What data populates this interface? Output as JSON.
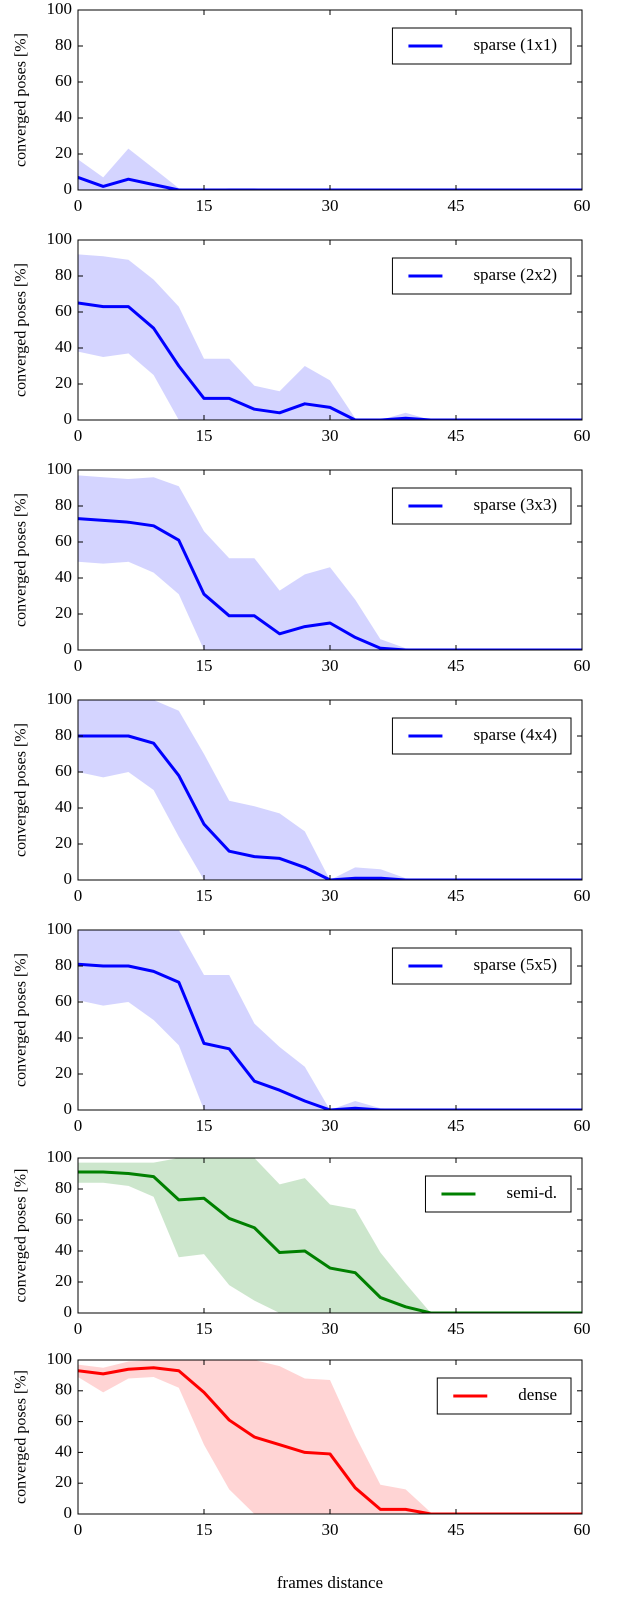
{
  "chart_data": [
    {
      "type": "line",
      "ylabel": "converged poses [%]",
      "legend": "upper right",
      "x": [
        0,
        3,
        6,
        9,
        12,
        15,
        18,
        21,
        24,
        27,
        30,
        33,
        36,
        39,
        42,
        45,
        48,
        51,
        54,
        57,
        60
      ],
      "xlim": [
        0,
        60
      ],
      "ylim": [
        0,
        100
      ],
      "xticks": [
        0,
        15,
        30,
        45,
        60
      ],
      "yticks": [
        0,
        20,
        40,
        60,
        80,
        100
      ],
      "series": [
        {
          "name": "sparse (1x1)",
          "color": "#0000ff",
          "band_color": "#d4d4ff",
          "values": [
            7,
            2,
            6,
            3,
            0,
            0,
            0,
            0,
            0,
            0,
            0,
            0,
            0,
            0,
            0,
            0,
            0,
            0,
            0,
            0,
            0
          ],
          "upper": [
            17,
            7,
            23,
            12,
            1,
            0,
            1,
            1,
            0,
            0,
            0,
            0,
            0,
            0,
            0,
            0,
            0,
            0,
            0,
            0,
            0
          ],
          "lower": [
            0,
            0,
            0,
            0,
            0,
            0,
            0,
            0,
            0,
            0,
            0,
            0,
            0,
            0,
            0,
            0,
            0,
            0,
            0,
            0,
            0
          ]
        }
      ]
    },
    {
      "type": "line",
      "ylabel": "converged poses [%]",
      "legend": "upper right",
      "x": [
        0,
        3,
        6,
        9,
        12,
        15,
        18,
        21,
        24,
        27,
        30,
        33,
        36,
        39,
        42,
        45,
        48,
        51,
        54,
        57,
        60
      ],
      "xlim": [
        0,
        60
      ],
      "ylim": [
        0,
        100
      ],
      "xticks": [
        0,
        15,
        30,
        45,
        60
      ],
      "yticks": [
        0,
        20,
        40,
        60,
        80,
        100
      ],
      "series": [
        {
          "name": "sparse (2x2)",
          "color": "#0000ff",
          "band_color": "#d4d4ff",
          "values": [
            65,
            63,
            63,
            51,
            30,
            12,
            12,
            6,
            4,
            9,
            7,
            0,
            0,
            1,
            0,
            0,
            0,
            0,
            0,
            0,
            0
          ],
          "upper": [
            92,
            91,
            89,
            78,
            63,
            34,
            34,
            19,
            16,
            30,
            22,
            1,
            0,
            4,
            0,
            0,
            0,
            0,
            0,
            0,
            0
          ],
          "lower": [
            38,
            35,
            37,
            25,
            0,
            0,
            0,
            0,
            0,
            0,
            0,
            0,
            0,
            0,
            0,
            0,
            0,
            0,
            0,
            0,
            0
          ]
        }
      ]
    },
    {
      "type": "line",
      "ylabel": "converged poses [%]",
      "legend": "upper right",
      "x": [
        0,
        3,
        6,
        9,
        12,
        15,
        18,
        21,
        24,
        27,
        30,
        33,
        36,
        39,
        42,
        45,
        48,
        51,
        54,
        57,
        60
      ],
      "xlim": [
        0,
        60
      ],
      "ylim": [
        0,
        100
      ],
      "xticks": [
        0,
        15,
        30,
        45,
        60
      ],
      "yticks": [
        0,
        20,
        40,
        60,
        80,
        100
      ],
      "series": [
        {
          "name": "sparse (3x3)",
          "color": "#0000ff",
          "band_color": "#d4d4ff",
          "values": [
            73,
            72,
            71,
            69,
            61,
            31,
            19,
            19,
            9,
            13,
            15,
            7,
            1,
            0,
            0,
            0,
            0,
            0,
            0,
            0,
            0
          ],
          "upper": [
            97,
            96,
            95,
            96,
            91,
            66,
            51,
            51,
            33,
            42,
            46,
            28,
            6,
            1,
            0,
            0,
            0,
            0,
            0,
            0,
            0
          ],
          "lower": [
            49,
            48,
            49,
            43,
            31,
            0,
            0,
            0,
            0,
            0,
            0,
            0,
            0,
            0,
            0,
            0,
            0,
            0,
            0,
            0,
            0
          ]
        }
      ]
    },
    {
      "type": "line",
      "ylabel": "converged poses [%]",
      "legend": "upper right",
      "x": [
        0,
        3,
        6,
        9,
        12,
        15,
        18,
        21,
        24,
        27,
        30,
        33,
        36,
        39,
        42,
        45,
        48,
        51,
        54,
        57,
        60
      ],
      "xlim": [
        0,
        60
      ],
      "ylim": [
        0,
        100
      ],
      "xticks": [
        0,
        15,
        30,
        45,
        60
      ],
      "yticks": [
        0,
        20,
        40,
        60,
        80,
        100
      ],
      "series": [
        {
          "name": "sparse (4x4)",
          "color": "#0000ff",
          "band_color": "#d4d4ff",
          "values": [
            80,
            80,
            80,
            76,
            58,
            31,
            16,
            13,
            12,
            7,
            0,
            1,
            1,
            0,
            0,
            0,
            0,
            0,
            0,
            0,
            0
          ],
          "upper": [
            100,
            100,
            100,
            100,
            94,
            70,
            44,
            41,
            37,
            27,
            0,
            7,
            6,
            1,
            0,
            0,
            0,
            0,
            0,
            0,
            0
          ],
          "lower": [
            60,
            57,
            60,
            50,
            24,
            0,
            0,
            0,
            0,
            0,
            0,
            0,
            0,
            0,
            0,
            0,
            0,
            0,
            0,
            0,
            0
          ]
        }
      ]
    },
    {
      "type": "line",
      "ylabel": "converged poses [%]",
      "legend": "upper right",
      "x": [
        0,
        3,
        6,
        9,
        12,
        15,
        18,
        21,
        24,
        27,
        30,
        33,
        36,
        39,
        42,
        45,
        48,
        51,
        54,
        57,
        60
      ],
      "xlim": [
        0,
        60
      ],
      "ylim": [
        0,
        100
      ],
      "xticks": [
        0,
        15,
        30,
        45,
        60
      ],
      "yticks": [
        0,
        20,
        40,
        60,
        80,
        100
      ],
      "series": [
        {
          "name": "sparse (5x5)",
          "color": "#0000ff",
          "band_color": "#d4d4ff",
          "values": [
            81,
            80,
            80,
            77,
            71,
            37,
            34,
            16,
            11,
            5,
            0,
            1,
            0,
            0,
            0,
            0,
            0,
            0,
            0,
            0,
            0
          ],
          "upper": [
            100,
            100,
            100,
            100,
            100,
            75,
            75,
            48,
            35,
            24,
            0,
            5,
            1,
            0,
            0,
            0,
            0,
            0,
            0,
            0,
            0
          ],
          "lower": [
            61,
            58,
            60,
            50,
            36,
            0,
            0,
            0,
            0,
            0,
            0,
            0,
            0,
            0,
            0,
            0,
            0,
            0,
            0,
            0,
            0
          ]
        }
      ]
    },
    {
      "type": "line",
      "ylabel": "converged poses [%]",
      "legend": "upper right",
      "x": [
        0,
        3,
        6,
        9,
        12,
        15,
        18,
        21,
        24,
        27,
        30,
        33,
        36,
        39,
        42,
        45,
        48,
        51,
        54,
        57,
        60
      ],
      "xlim": [
        0,
        60
      ],
      "ylim": [
        0,
        100
      ],
      "xticks": [
        0,
        15,
        30,
        45,
        60
      ],
      "yticks": [
        0,
        20,
        40,
        60,
        80,
        100
      ],
      "series": [
        {
          "name": "semi-d.",
          "color": "#008000",
          "band_color": "#cce6cc",
          "values": [
            91,
            91,
            90,
            88,
            73,
            74,
            61,
            55,
            39,
            40,
            29,
            26,
            10,
            4,
            0,
            0,
            0,
            0,
            0,
            0,
            0
          ],
          "upper": [
            97,
            97,
            97,
            97,
            100,
            100,
            100,
            100,
            83,
            87,
            70,
            67,
            39,
            19,
            0,
            0,
            0,
            0,
            0,
            0,
            0
          ],
          "lower": [
            84,
            84,
            82,
            75,
            36,
            38,
            18,
            8,
            0,
            0,
            0,
            0,
            0,
            0,
            0,
            0,
            0,
            0,
            0,
            0,
            0
          ]
        }
      ]
    },
    {
      "type": "line",
      "ylabel": "converged poses [%]",
      "xlabel": "frames distance",
      "legend": "upper right",
      "x": [
        0,
        3,
        6,
        9,
        12,
        15,
        18,
        21,
        24,
        27,
        30,
        33,
        36,
        39,
        42,
        45,
        48,
        51,
        54,
        57,
        60
      ],
      "xlim": [
        0,
        60
      ],
      "ylim": [
        0,
        100
      ],
      "xticks": [
        0,
        15,
        30,
        45,
        60
      ],
      "yticks": [
        0,
        20,
        40,
        60,
        80,
        100
      ],
      "series": [
        {
          "name": "dense",
          "color": "#ff0000",
          "band_color": "#ffd4d4",
          "values": [
            93,
            91,
            94,
            95,
            93,
            79,
            61,
            50,
            45,
            40,
            39,
            17,
            3,
            3,
            0,
            0,
            0,
            0,
            0,
            0,
            0
          ],
          "upper": [
            97,
            95,
            99,
            100,
            100,
            100,
            100,
            100,
            96,
            88,
            87,
            51,
            19,
            16,
            1,
            0,
            0,
            0,
            0,
            0,
            0
          ],
          "lower": [
            89,
            79,
            88,
            89,
            82,
            45,
            16,
            0,
            0,
            0,
            0,
            0,
            0,
            0,
            0,
            0,
            0,
            0,
            0,
            0,
            0
          ]
        }
      ]
    }
  ]
}
